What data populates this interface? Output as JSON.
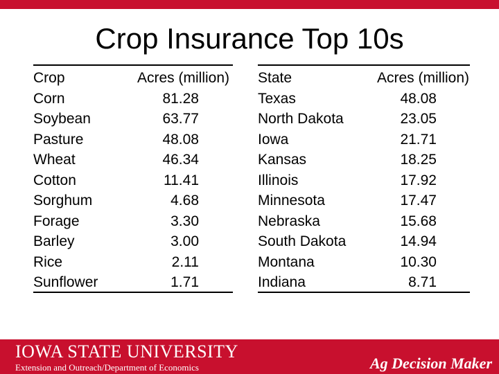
{
  "title": "Crop Insurance Top 10s",
  "crop_table": {
    "headers": [
      "Crop",
      "Acres (million)"
    ],
    "rows": [
      {
        "name": "Corn",
        "value": "81.28"
      },
      {
        "name": "Soybean",
        "value": "63.77"
      },
      {
        "name": "Pasture",
        "value": "48.08"
      },
      {
        "name": "Wheat",
        "value": "46.34"
      },
      {
        "name": "Cotton",
        "value": "11.41"
      },
      {
        "name": "Sorghum",
        "value": "4.68"
      },
      {
        "name": "Forage",
        "value": "3.30"
      },
      {
        "name": "Barley",
        "value": "3.00"
      },
      {
        "name": "Rice",
        "value": "2.11"
      },
      {
        "name": "Sunflower",
        "value": "1.71"
      }
    ]
  },
  "state_table": {
    "headers": [
      "State",
      "Acres (million)"
    ],
    "rows": [
      {
        "name": "Texas",
        "value": "48.08"
      },
      {
        "name": "North Dakota",
        "value": "23.05"
      },
      {
        "name": "Iowa",
        "value": "21.71"
      },
      {
        "name": "Kansas",
        "value": "18.25"
      },
      {
        "name": "Illinois",
        "value": "17.92"
      },
      {
        "name": "Minnesota",
        "value": "17.47"
      },
      {
        "name": "Nebraska",
        "value": "15.68"
      },
      {
        "name": "South Dakota",
        "value": "14.94"
      },
      {
        "name": "Montana",
        "value": "10.30"
      },
      {
        "name": "Indiana",
        "value": "8.71"
      }
    ]
  },
  "footer": {
    "logo": "IOWA STATE UNIVERSITY",
    "department": "Extension and Outreach/Department of Economics",
    "brand": "Ag Decision Maker"
  },
  "colors": {
    "brand_red": "#c8102e"
  }
}
